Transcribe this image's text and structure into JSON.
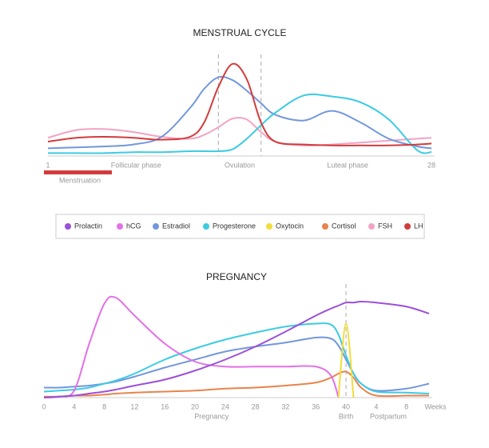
{
  "chart_data": [
    {
      "type": "line",
      "title": "MENSTRUAL CYCLE",
      "x": [
        1,
        3,
        5,
        7,
        9,
        11,
        12,
        13,
        14,
        15,
        16,
        17,
        19,
        21,
        23,
        25,
        27,
        28
      ],
      "xlim": [
        1,
        28
      ],
      "xticks": [
        1,
        28
      ],
      "ylim": [
        0,
        100
      ],
      "markers": [
        13,
        16
      ],
      "annotations": [
        {
          "text": "Follicular phase",
          "x": 7.2
        },
        {
          "text": "Ovulation",
          "x": 14.5
        },
        {
          "text": "Luteal phase",
          "x": 22.1
        }
      ],
      "menstruation": {
        "label": "Menstruation",
        "range": [
          1,
          5.5
        ]
      },
      "series": [
        {
          "name": "FSH",
          "color": "#f2a3c4",
          "values": [
            19,
            27,
            28,
            25,
            20,
            18,
            22,
            30,
            39,
            38,
            25,
            15,
            11,
            12,
            14,
            16,
            18,
            19
          ]
        },
        {
          "name": "Estradiol",
          "color": "#7397dc",
          "values": [
            8,
            9,
            10,
            12,
            20,
            50,
            70,
            82,
            79,
            68,
            55,
            43,
            37,
            47,
            35,
            18,
            10,
            8
          ]
        },
        {
          "name": "Progesterone",
          "color": "#3ccbe3",
          "values": [
            3,
            3,
            3,
            4,
            4,
            5,
            5,
            5,
            7,
            18,
            32,
            45,
            63,
            62,
            56,
            38,
            6,
            4
          ]
        },
        {
          "name": "LH",
          "color": "#d23b3b",
          "values": [
            15,
            19,
            20,
            19,
            17,
            20,
            35,
            72,
            96,
            80,
            35,
            15,
            12,
            11,
            11,
            11,
            12,
            13
          ]
        }
      ]
    },
    {
      "type": "line",
      "title": "PREGNANCY",
      "x": [
        0,
        2,
        4,
        6,
        8,
        9.5,
        12,
        16,
        20,
        24,
        28,
        32,
        36,
        38,
        39,
        40,
        41,
        42,
        44,
        48,
        51
      ],
      "xlim": [
        0,
        51
      ],
      "ylim": [
        0,
        100
      ],
      "xticks": [
        0,
        4,
        8,
        12,
        16,
        20,
        24,
        28,
        32,
        36,
        40,
        {
          "value": 44,
          "label": "4"
        },
        {
          "value": 48,
          "label": "8"
        }
      ],
      "xlabel": "Weeks",
      "markers": [
        40
      ],
      "annotations": [
        {
          "text": "Pregnancy",
          "x": 22.2
        },
        {
          "text": "Birth",
          "x": 40
        },
        {
          "text": "Postpartum",
          "x": 45.6
        }
      ],
      "series": [
        {
          "name": "Cortisol",
          "color": "#e8834c",
          "values": [
            1,
            1,
            2,
            2,
            3,
            4,
            5,
            6,
            7,
            9,
            10,
            12,
            15,
            20,
            24,
            26,
            20,
            10,
            2,
            2,
            2
          ]
        },
        {
          "name": "Estradiol",
          "color": "#7397dc",
          "values": [
            10,
            10,
            11,
            12,
            14,
            16,
            21,
            30,
            38,
            46,
            51,
            55,
            60,
            59,
            52,
            38,
            24,
            14,
            7,
            9,
            14
          ]
        },
        {
          "name": "Progesterone",
          "color": "#3ccbe3",
          "values": [
            6,
            7,
            8,
            10,
            14,
            17,
            24,
            38,
            49,
            58,
            65,
            71,
            74,
            73,
            63,
            42,
            24,
            14,
            6,
            5,
            4
          ]
        },
        {
          "name": "hCG",
          "color": "#e370e8",
          "values": [
            0,
            1,
            7,
            54,
            94,
            100,
            82,
            54,
            36,
            31,
            31,
            31,
            31,
            22,
            0,
            null,
            null,
            null,
            null,
            null,
            null
          ]
        },
        {
          "name": "Prolactin",
          "color": "#9b50d8",
          "values": [
            0,
            1,
            2,
            4,
            6,
            8,
            12,
            18,
            27,
            38,
            51,
            66,
            82,
            89,
            92,
            95,
            95,
            96,
            95,
            91,
            84
          ]
        },
        {
          "name": "Oxytocin",
          "color": "#f2dc3a",
          "values": [
            null,
            null,
            null,
            null,
            null,
            null,
            null,
            null,
            null,
            null,
            null,
            null,
            null,
            null,
            0,
            74,
            0,
            null,
            null,
            null,
            null
          ]
        }
      ]
    }
  ],
  "legend": [
    {
      "name": "Prolactin",
      "color": "#9b50d8"
    },
    {
      "name": "hCG",
      "color": "#e370e8"
    },
    {
      "name": "Estradiol",
      "color": "#7397dc"
    },
    {
      "name": "Progesterone",
      "color": "#3ccbe3"
    },
    {
      "name": "Oxytocin",
      "color": "#f2dc3a"
    },
    {
      "name": "Cortisol",
      "color": "#e8834c"
    },
    {
      "name": "FSH",
      "color": "#f2a3c4"
    },
    {
      "name": "LH",
      "color": "#d23b3b"
    }
  ]
}
